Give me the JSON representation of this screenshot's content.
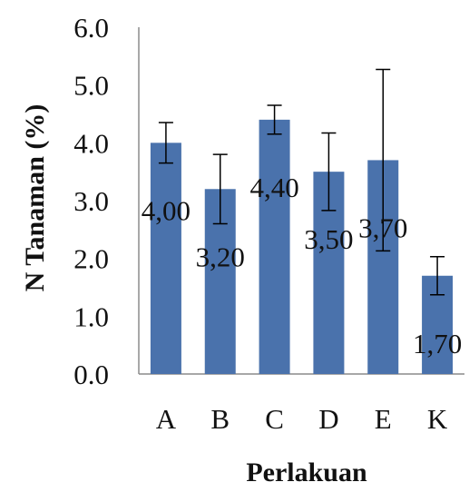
{
  "chart_data": {
    "type": "bar",
    "title": "",
    "xlabel": "Perlakuan",
    "ylabel": "N Tanaman (%)",
    "ylim": [
      0,
      6
    ],
    "yticks": [
      "0.0",
      "1.0",
      "2.0",
      "3.0",
      "4.0",
      "5.0",
      "6.0"
    ],
    "grid": false,
    "legend": "none",
    "bar_color": "#4a72ac",
    "categories": [
      "A",
      "B",
      "C",
      "D",
      "E",
      "K"
    ],
    "values": [
      4.0,
      3.2,
      4.4,
      3.5,
      3.7,
      1.7
    ],
    "errors": [
      0.35,
      0.6,
      0.25,
      0.67,
      1.57,
      0.33
    ],
    "data_labels": [
      "4,00",
      "3,20",
      "4,40",
      "3,50",
      "3,70",
      "1,70"
    ]
  }
}
